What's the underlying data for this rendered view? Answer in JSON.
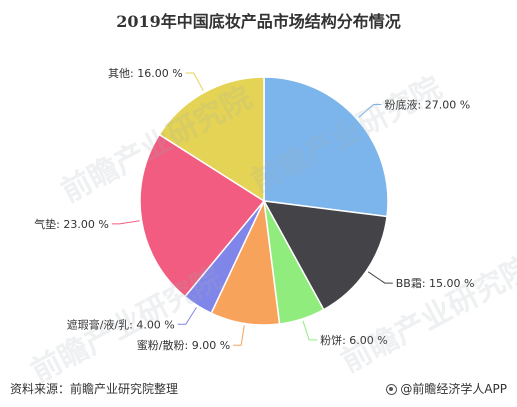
{
  "chart_data": {
    "type": "pie",
    "title": "2019年中国底妆产品市场结构分布情况",
    "start_angle_deg": 0,
    "direction": "clockwise",
    "slices": [
      {
        "label": "粉底液",
        "value": 27.0,
        "display": "27.00 %",
        "color": "#7cb5ec"
      },
      {
        "label": "BB霜",
        "value": 15.0,
        "display": "15.00 %",
        "color": "#434348"
      },
      {
        "label": "粉饼",
        "value": 6.0,
        "display": "6.00 %",
        "color": "#90ed7d"
      },
      {
        "label": "蜜粉/散粉",
        "value": 9.0,
        "display": "9.00 %",
        "color": "#f7a35c"
      },
      {
        "label": "遮瑕膏/液/乳",
        "value": 4.0,
        "display": "4.00 %",
        "color": "#8085e9"
      },
      {
        "label": "气垫",
        "value": 23.0,
        "display": "23.00 %",
        "color": "#f15c80"
      },
      {
        "label": "其他",
        "value": 16.0,
        "display": "16.00 %",
        "color": "#e4d354"
      }
    ]
  },
  "footer": {
    "source": "资料来源：前瞻产业研究院整理",
    "brand": "@前瞻经济学人APP"
  },
  "watermark": {
    "text": "前瞻产业研究院"
  }
}
